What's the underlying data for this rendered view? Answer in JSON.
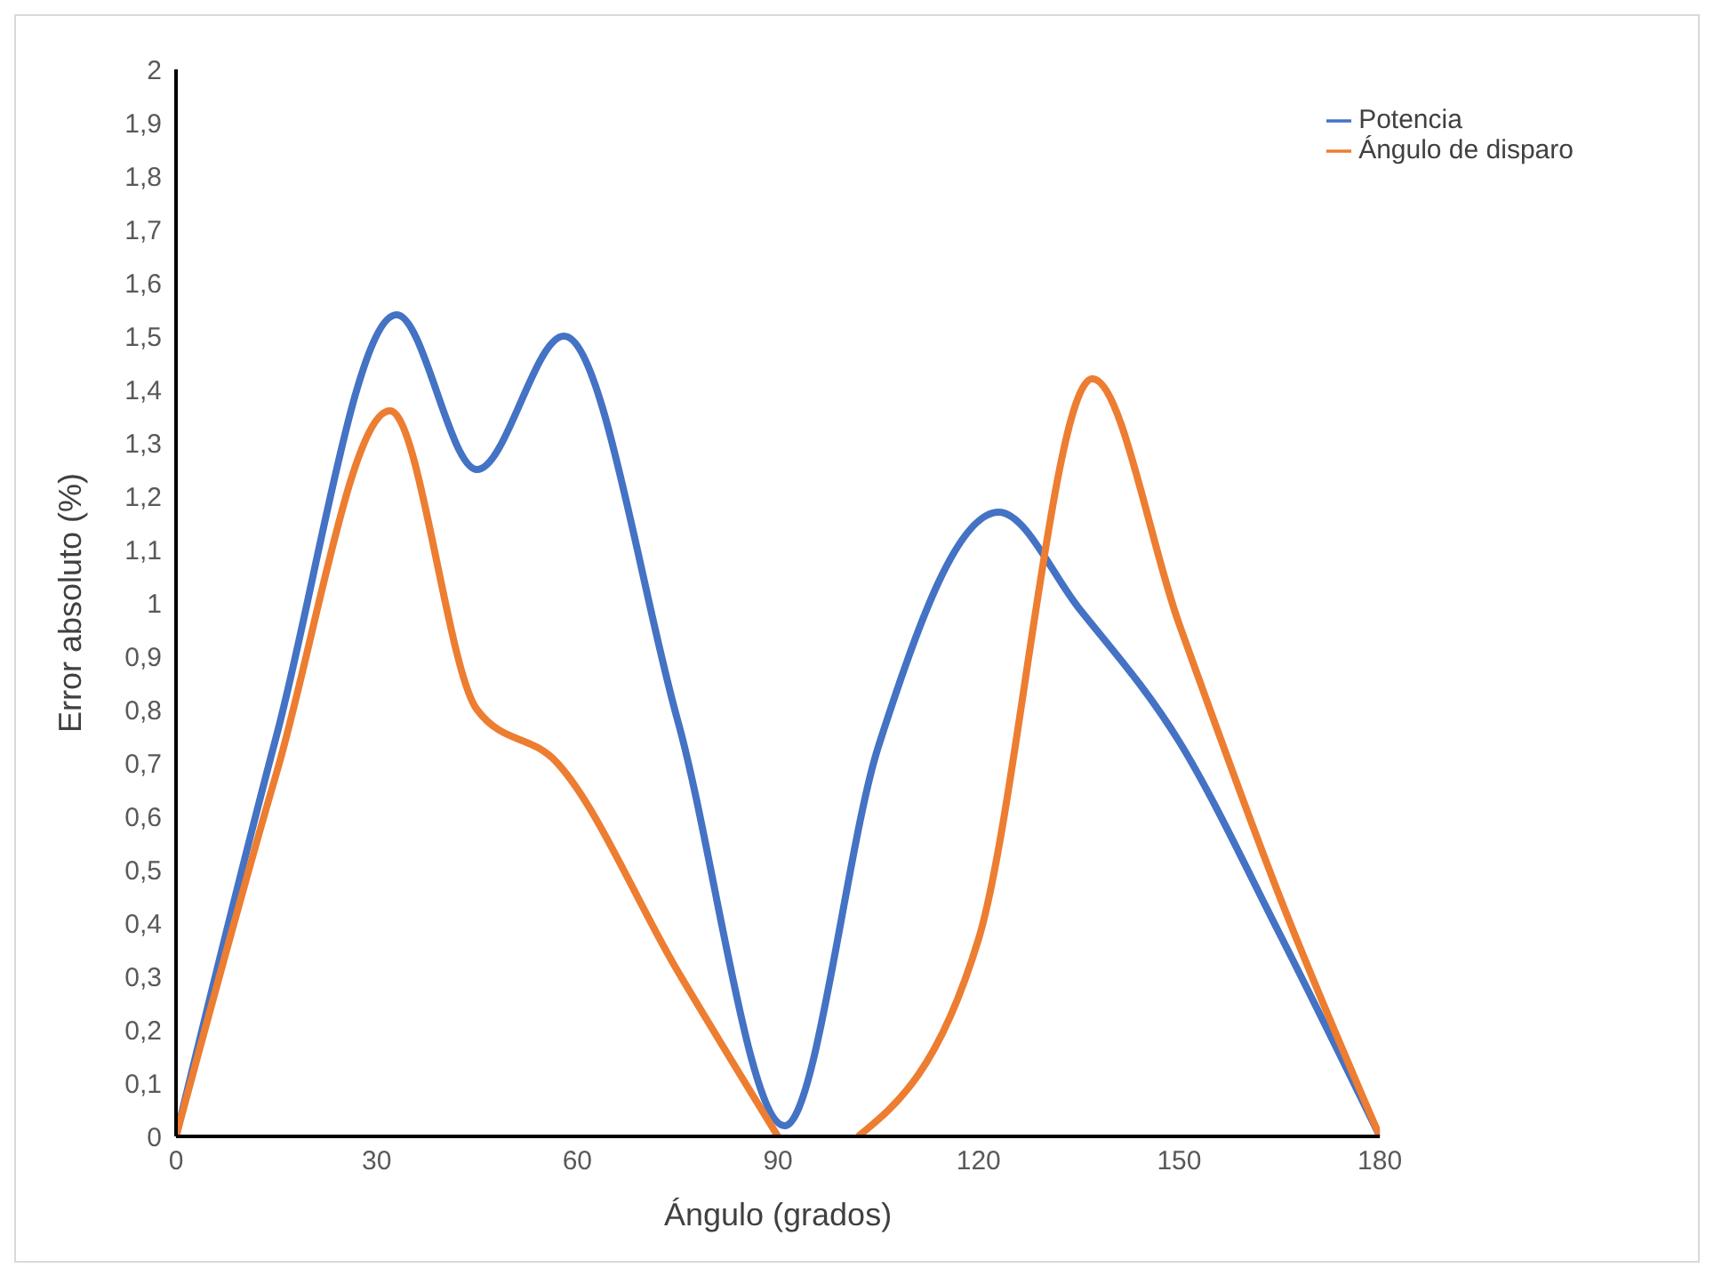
{
  "chart_data": {
    "type": "line",
    "xlabel": "Ángulo (grados)",
    "ylabel": "Error absoluto (%)",
    "xlim": [
      0,
      180
    ],
    "xticks": [
      0,
      30,
      60,
      90,
      120,
      150,
      180
    ],
    "ylim": [
      0,
      2
    ],
    "yticks": [
      0,
      {
        "value": 0.1,
        "label": "0,1"
      },
      {
        "value": 0.2,
        "label": "0,2"
      },
      {
        "value": 0.3,
        "label": "0,3"
      },
      {
        "value": 0.4,
        "label": "0,4"
      },
      {
        "value": 0.5,
        "label": "0,5"
      },
      {
        "value": 0.6,
        "label": "0,6"
      },
      {
        "value": 0.7,
        "label": "0,7"
      },
      {
        "value": 0.8,
        "label": "0,8"
      },
      {
        "value": 0.9,
        "label": "0,9"
      },
      1,
      {
        "value": 1.1,
        "label": "1,1"
      },
      {
        "value": 1.2,
        "label": "1,2"
      },
      {
        "value": 1.3,
        "label": "1,3"
      },
      {
        "value": 1.4,
        "label": "1,4"
      },
      {
        "value": 1.5,
        "label": "1,5"
      },
      {
        "value": 1.6,
        "label": "1,6"
      },
      {
        "value": 1.7,
        "label": "1,7"
      },
      {
        "value": 1.8,
        "label": "1,8"
      },
      {
        "value": 1.9,
        "label": "1,9"
      },
      2
    ],
    "grid": false,
    "legend": "top right",
    "marker": "none",
    "line_style": "solid",
    "series": [
      {
        "name": "Potencia",
        "color": "#4472c4",
        "x": [
          0,
          15,
          33,
          45,
          58,
          75,
          91,
          105,
          123,
          135,
          150,
          165,
          180
        ],
        "values": [
          0,
          0.75,
          1.54,
          1.25,
          1.5,
          0.78,
          0.02,
          0.73,
          1.17,
          0.99,
          0.74,
          0.38,
          0
        ]
      },
      {
        "name": "Ángulo de disparo",
        "color": "#ed7d31",
        "x": [
          0,
          15,
          32,
          45,
          57,
          75,
          90,
          96,
          102,
          120,
          137,
          150,
          165,
          180
        ],
        "values": [
          0,
          0.68,
          1.36,
          0.8,
          0.7,
          0.31,
          0,
          null,
          0,
          0.37,
          1.42,
          0.96,
          0.45,
          0
        ]
      }
    ]
  }
}
